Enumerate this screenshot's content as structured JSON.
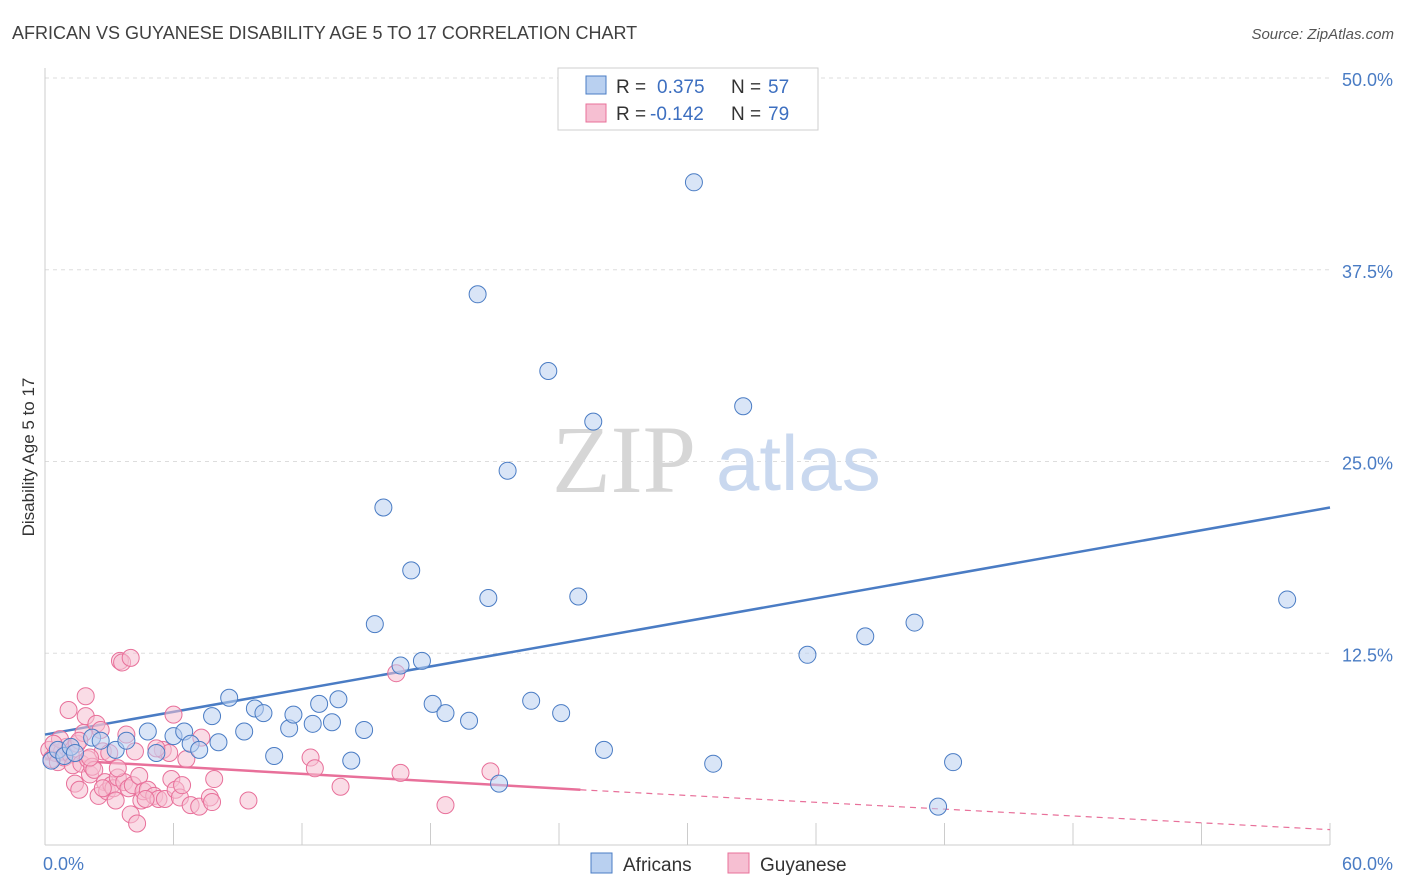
{
  "title": "AFRICAN VS GUYANESE DISABILITY AGE 5 TO 17 CORRELATION CHART",
  "source": "Source: ZipAtlas.com",
  "watermark": {
    "zip": "ZIP",
    "atlas": "atlas"
  },
  "colors": {
    "africans": "#4a7cc4",
    "africans_fill": "#b9d0f0",
    "guyanese": "#e8709a",
    "guyanese_fill": "#f6bfd2",
    "grid": "#dddddd"
  },
  "legend": {
    "rows": [
      {
        "r_label": "R =",
        "r_value": "0.375",
        "n_label": "N =",
        "n_value": "57"
      },
      {
        "r_label": "R =",
        "r_value": "-0.142",
        "n_label": "N =",
        "n_value": "79"
      }
    ]
  },
  "chart_data": {
    "type": "scatter",
    "title": "AFRICAN VS GUYANESE DISABILITY AGE 5 TO 17 CORRELATION CHART",
    "ylabel": "Disability Age 5 to 17",
    "xlabel": "",
    "xlim": [
      0,
      60
    ],
    "ylim": [
      0,
      50
    ],
    "x_tick_labels": [
      "0.0%",
      "60.0%"
    ],
    "y_ticks": [
      12.5,
      25.0,
      37.5,
      50.0
    ],
    "y_tick_labels": [
      "12.5%",
      "25.0%",
      "37.5%",
      "50.0%"
    ],
    "grid": true,
    "series": [
      {
        "name": "Africans",
        "r": 0.375,
        "n": 57,
        "trend": {
          "x": [
            0,
            60
          ],
          "y": [
            7.2,
            22.0
          ]
        },
        "points": [
          [
            0.3,
            5.5
          ],
          [
            0.6,
            6.2
          ],
          [
            0.9,
            5.8
          ],
          [
            1.2,
            6.4
          ],
          [
            1.4,
            6.0
          ],
          [
            2.2,
            7.0
          ],
          [
            2.6,
            6.8
          ],
          [
            3.3,
            6.2
          ],
          [
            3.8,
            6.8
          ],
          [
            4.8,
            7.4
          ],
          [
            5.2,
            6.0
          ],
          [
            6.0,
            7.1
          ],
          [
            6.5,
            7.4
          ],
          [
            6.8,
            6.6
          ],
          [
            7.2,
            6.2
          ],
          [
            7.8,
            8.4
          ],
          [
            8.1,
            6.7
          ],
          [
            8.6,
            9.6
          ],
          [
            9.3,
            7.4
          ],
          [
            9.8,
            8.9
          ],
          [
            10.2,
            8.6
          ],
          [
            10.7,
            5.8
          ],
          [
            11.4,
            7.6
          ],
          [
            11.6,
            8.5
          ],
          [
            12.5,
            7.9
          ],
          [
            12.8,
            9.2
          ],
          [
            13.4,
            8.0
          ],
          [
            13.7,
            9.5
          ],
          [
            14.3,
            5.5
          ],
          [
            14.9,
            7.5
          ],
          [
            15.4,
            14.4
          ],
          [
            15.8,
            22.0
          ],
          [
            16.6,
            11.7
          ],
          [
            17.1,
            17.9
          ],
          [
            17.6,
            12.0
          ],
          [
            18.1,
            9.2
          ],
          [
            18.7,
            8.6
          ],
          [
            19.8,
            8.1
          ],
          [
            20.2,
            35.9
          ],
          [
            20.7,
            16.1
          ],
          [
            21.2,
            4.0
          ],
          [
            21.6,
            24.4
          ],
          [
            22.7,
            9.4
          ],
          [
            23.5,
            30.9
          ],
          [
            24.1,
            8.6
          ],
          [
            24.9,
            16.2
          ],
          [
            25.6,
            27.6
          ],
          [
            26.1,
            6.2
          ],
          [
            30.3,
            43.2
          ],
          [
            31.2,
            5.3
          ],
          [
            32.6,
            28.6
          ],
          [
            35.6,
            12.4
          ],
          [
            38.3,
            13.6
          ],
          [
            40.6,
            14.5
          ],
          [
            41.7,
            2.5
          ],
          [
            42.4,
            5.4
          ],
          [
            58.0,
            16.0
          ]
        ]
      },
      {
        "name": "Guyanese",
        "r": -0.142,
        "n": 79,
        "trend": {
          "x": [
            0,
            25
          ],
          "y": [
            5.6,
            3.6
          ]
        },
        "trend_dashed": {
          "x": [
            25,
            60
          ],
          "y": [
            3.6,
            1.0
          ]
        },
        "points": [
          [
            0.2,
            6.2
          ],
          [
            0.3,
            5.6
          ],
          [
            0.5,
            6.0
          ],
          [
            0.6,
            5.4
          ],
          [
            0.8,
            6.1
          ],
          [
            0.9,
            5.7
          ],
          [
            1.0,
            6.4
          ],
          [
            1.1,
            8.8
          ],
          [
            1.2,
            5.9
          ],
          [
            1.3,
            5.2
          ],
          [
            1.4,
            4.0
          ],
          [
            1.5,
            6.6
          ],
          [
            1.6,
            3.6
          ],
          [
            1.7,
            5.3
          ],
          [
            1.8,
            7.3
          ],
          [
            1.9,
            8.4
          ],
          [
            1.9,
            9.7
          ],
          [
            2.0,
            5.6
          ],
          [
            2.1,
            4.6
          ],
          [
            2.2,
            5.1
          ],
          [
            2.3,
            4.9
          ],
          [
            2.4,
            7.9
          ],
          [
            2.5,
            3.2
          ],
          [
            2.6,
            7.5
          ],
          [
            2.7,
            6.1
          ],
          [
            2.8,
            4.1
          ],
          [
            2.9,
            3.5
          ],
          [
            3.0,
            6.0
          ],
          [
            3.1,
            3.9
          ],
          [
            3.2,
            3.7
          ],
          [
            3.3,
            2.9
          ],
          [
            3.4,
            4.4
          ],
          [
            3.5,
            12.0
          ],
          [
            3.6,
            11.9
          ],
          [
            3.7,
            4.1
          ],
          [
            3.8,
            7.2
          ],
          [
            3.9,
            3.7
          ],
          [
            4.0,
            12.2
          ],
          [
            4.0,
            2.0
          ],
          [
            4.1,
            3.9
          ],
          [
            4.2,
            6.1
          ],
          [
            4.3,
            1.4
          ],
          [
            4.4,
            4.5
          ],
          [
            4.5,
            2.9
          ],
          [
            4.6,
            3.5
          ],
          [
            4.8,
            3.6
          ],
          [
            5.1,
            3.2
          ],
          [
            5.3,
            3.0
          ],
          [
            5.5,
            6.2
          ],
          [
            5.6,
            3.0
          ],
          [
            5.8,
            6.0
          ],
          [
            5.9,
            4.3
          ],
          [
            6.0,
            8.5
          ],
          [
            6.1,
            3.6
          ],
          [
            6.3,
            3.1
          ],
          [
            6.6,
            5.6
          ],
          [
            6.8,
            2.6
          ],
          [
            7.2,
            2.5
          ],
          [
            7.7,
            3.1
          ],
          [
            7.8,
            2.8
          ],
          [
            7.9,
            4.3
          ],
          [
            9.5,
            2.9
          ],
          [
            12.4,
            5.7
          ],
          [
            12.6,
            5.0
          ],
          [
            13.8,
            3.8
          ],
          [
            16.4,
            11.2
          ],
          [
            16.6,
            4.7
          ],
          [
            18.7,
            2.6
          ],
          [
            20.8,
            4.8
          ],
          [
            0.7,
            6.9
          ],
          [
            1.6,
            6.8
          ],
          [
            2.1,
            5.7
          ],
          [
            2.7,
            3.7
          ],
          [
            3.4,
            5.0
          ],
          [
            4.7,
            3.0
          ],
          [
            5.2,
            6.3
          ],
          [
            6.4,
            3.9
          ],
          [
            7.3,
            7.0
          ],
          [
            0.4,
            6.6
          ]
        ]
      }
    ]
  },
  "bottom_legend": {
    "items": [
      "Africans",
      "Guyanese"
    ]
  }
}
